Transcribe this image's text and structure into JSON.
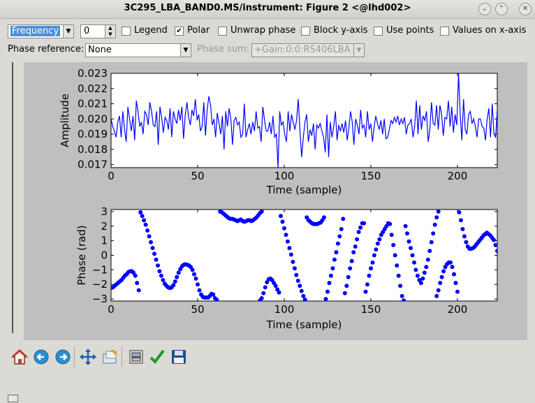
{
  "window": {
    "title": "3C295_LBA_BAND0.MS/instrument: Figure 2 <@lhd002>",
    "buttons": [
      "chevron-down",
      "chevron-up",
      "close"
    ]
  },
  "controls": {
    "axis_select": "Frequency",
    "index_value": "0",
    "checkboxes": [
      {
        "label": "Legend",
        "checked": false
      },
      {
        "label": "Polar",
        "checked": true
      },
      {
        "label": "Unwrap phase",
        "checked": false
      },
      {
        "label": "Block y-axis",
        "checked": false
      },
      {
        "label": "Use points",
        "checked": false
      },
      {
        "label": "Values on x-axis",
        "checked": false
      }
    ],
    "phase_reference_label": "Phase reference:",
    "phase_reference_value": "None",
    "phase_sum_label": "Phase sum:",
    "phase_sum_value": "+Gain:0:0:RS406LBA"
  },
  "chart_data": [
    {
      "type": "line",
      "xlabel": "Time (sample)",
      "ylabel": "Amplitude",
      "xlim": [
        0,
        223
      ],
      "ylim": [
        0.0168,
        0.023
      ],
      "xticks": [
        0,
        50,
        100,
        150,
        200
      ],
      "yticks": [
        "0.017",
        "0.018",
        "0.019",
        "0.020",
        "0.021",
        "0.022",
        "0.023"
      ],
      "ytick_values": [
        0.017,
        0.018,
        0.019,
        0.02,
        0.021,
        0.022,
        0.023
      ],
      "color": "#0000ff",
      "y": [
        0.02,
        0.0195,
        0.0192,
        0.0188,
        0.0198,
        0.0202,
        0.0188,
        0.0205,
        0.0193,
        0.0185,
        0.0208,
        0.02,
        0.0192,
        0.0202,
        0.0186,
        0.0212,
        0.0205,
        0.0195,
        0.0198,
        0.019,
        0.0205,
        0.0203,
        0.0196,
        0.0211,
        0.0205,
        0.0196,
        0.0195,
        0.0205,
        0.0183,
        0.0208,
        0.0201,
        0.0191,
        0.0201,
        0.0199,
        0.0193,
        0.0207,
        0.0188,
        0.0205,
        0.02,
        0.0197,
        0.0206,
        0.0199,
        0.0208,
        0.0187,
        0.0203,
        0.0211,
        0.0201,
        0.0196,
        0.0206,
        0.0202,
        0.0213,
        0.0199,
        0.0203,
        0.0192,
        0.0195,
        0.0211,
        0.0189,
        0.0206,
        0.0215,
        0.0209,
        0.0196,
        0.02,
        0.0188,
        0.0204,
        0.0197,
        0.019,
        0.0202,
        0.018,
        0.0205,
        0.0195,
        0.0207,
        0.02,
        0.0183,
        0.0199,
        0.0201,
        0.0196,
        0.0198,
        0.0188,
        0.019,
        0.021,
        0.0188,
        0.0193,
        0.0197,
        0.019,
        0.0198,
        0.0192,
        0.0205,
        0.0194,
        0.0195,
        0.0185,
        0.0208,
        0.0199,
        0.0192,
        0.0192,
        0.0198,
        0.019,
        0.0202,
        0.0188,
        0.019,
        0.0168,
        0.0205,
        0.0196,
        0.0198,
        0.019,
        0.0185,
        0.0205,
        0.0192,
        0.0203,
        0.0198,
        0.0193,
        0.0199,
        0.0213,
        0.0192,
        0.0175,
        0.0188,
        0.0198,
        0.0203,
        0.0185,
        0.0193,
        0.0189,
        0.0197,
        0.018,
        0.0196,
        0.0194,
        0.0197,
        0.0192,
        0.0188,
        0.0178,
        0.0203,
        0.0175,
        0.0198,
        0.0188,
        0.0195,
        0.0205,
        0.0186,
        0.0196,
        0.0192,
        0.0197,
        0.0191,
        0.0199,
        0.0186,
        0.0194,
        0.0205,
        0.0198,
        0.0183,
        0.02,
        0.0196,
        0.019,
        0.0206,
        0.0194,
        0.0196,
        0.0188,
        0.0205,
        0.0193,
        0.0197,
        0.0185,
        0.0195,
        0.0202,
        0.0197,
        0.0193,
        0.0199,
        0.019,
        0.02,
        0.0187,
        0.0188,
        0.0193,
        0.0199,
        0.0197,
        0.0201,
        0.0198,
        0.0202,
        0.0196,
        0.02,
        0.0197,
        0.0201,
        0.019,
        0.0196,
        0.0197,
        0.02,
        0.0188,
        0.0195,
        0.0212,
        0.019,
        0.0209,
        0.0193,
        0.0202,
        0.0199,
        0.0205,
        0.0185,
        0.0193,
        0.0211,
        0.0197,
        0.0196,
        0.0209,
        0.0193,
        0.0209,
        0.0203,
        0.0189,
        0.0201,
        0.02,
        0.0212,
        0.0195,
        0.0208,
        0.0191,
        0.0203,
        0.0196,
        0.023,
        0.0203,
        0.0186,
        0.0213,
        0.0193,
        0.019,
        0.0203,
        0.0205,
        0.0197,
        0.02,
        0.0195,
        0.0188,
        0.02,
        0.02,
        0.0195,
        0.0194,
        0.0186,
        0.02,
        0.0207,
        0.0188,
        0.021,
        0.019,
        0.0188,
        0.0206
      ]
    },
    {
      "type": "scatter",
      "xlabel": "Time (sample)",
      "ylabel": "Phase (rad)",
      "xlim": [
        0,
        223
      ],
      "ylim": [
        -3.14,
        3.14
      ],
      "xticks": [
        0,
        50,
        100,
        150,
        200
      ],
      "yticks": [
        "3",
        "2",
        "1",
        "0",
        "−1",
        "−2",
        "−3"
      ],
      "ytick_values": [
        3,
        2,
        1,
        0,
        -1,
        -2,
        -3
      ],
      "color": "#0000ff",
      "points": [
        [
          0,
          -2.25
        ],
        [
          1,
          -2.2
        ],
        [
          2,
          -2.1
        ],
        [
          3,
          -2.0
        ],
        [
          4,
          -1.9
        ],
        [
          5,
          -1.8
        ],
        [
          6,
          -1.7
        ],
        [
          7,
          -1.55
        ],
        [
          8,
          -1.4
        ],
        [
          9,
          -1.3
        ],
        [
          10,
          -1.15
        ],
        [
          11,
          -1.1
        ],
        [
          12,
          -1.1
        ],
        [
          13,
          -1.2
        ],
        [
          14,
          -1.4
        ],
        [
          15,
          -1.9
        ],
        [
          16,
          -2.4
        ],
        [
          17,
          2.95
        ],
        [
          18,
          2.7
        ],
        [
          19,
          2.4
        ],
        [
          20,
          2.1
        ],
        [
          21,
          1.7
        ],
        [
          22,
          1.3
        ],
        [
          23,
          0.9
        ],
        [
          24,
          0.5
        ],
        [
          25,
          0.1
        ],
        [
          26,
          -0.3
        ],
        [
          27,
          -0.7
        ],
        [
          28,
          -1.1
        ],
        [
          29,
          -1.4
        ],
        [
          30,
          -1.7
        ],
        [
          31,
          -1.95
        ],
        [
          32,
          -2.1
        ],
        [
          33,
          -2.2
        ],
        [
          34,
          -2.25
        ],
        [
          35,
          -2.2
        ],
        [
          36,
          -2.05
        ],
        [
          37,
          -1.8
        ],
        [
          38,
          -1.5
        ],
        [
          39,
          -1.2
        ],
        [
          40,
          -0.95
        ],
        [
          41,
          -0.75
        ],
        [
          42,
          -0.65
        ],
        [
          43,
          -0.62
        ],
        [
          44,
          -0.65
        ],
        [
          45,
          -0.7
        ],
        [
          46,
          -0.8
        ],
        [
          47,
          -1.0
        ],
        [
          48,
          -1.3
        ],
        [
          49,
          -1.6
        ],
        [
          50,
          -2.0
        ],
        [
          51,
          -2.4
        ],
        [
          52,
          -2.7
        ],
        [
          53,
          -2.85
        ],
        [
          54,
          -2.9
        ],
        [
          55,
          -2.9
        ],
        [
          56,
          -2.9
        ],
        [
          57,
          -2.8
        ],
        [
          58,
          -2.65
        ],
        [
          59,
          -2.7
        ],
        [
          60,
          -2.95
        ],
        [
          61,
          -3.05
        ],
        [
          63,
          3.0
        ],
        [
          64,
          2.95
        ],
        [
          65,
          2.85
        ],
        [
          66,
          2.75
        ],
        [
          67,
          2.65
        ],
        [
          68,
          2.55
        ],
        [
          69,
          2.5
        ],
        [
          70,
          2.5
        ],
        [
          71,
          2.45
        ],
        [
          72,
          2.4
        ],
        [
          73,
          2.35
        ],
        [
          74,
          2.4
        ],
        [
          75,
          2.45
        ],
        [
          76,
          2.35
        ],
        [
          77,
          2.3
        ],
        [
          78,
          2.35
        ],
        [
          79,
          2.4
        ],
        [
          80,
          2.4
        ],
        [
          81,
          2.35
        ],
        [
          82,
          2.4
        ],
        [
          83,
          2.5
        ],
        [
          84,
          2.6
        ],
        [
          85,
          2.75
        ],
        [
          86,
          2.9
        ],
        [
          87,
          3.0
        ],
        [
          86,
          -3.1
        ],
        [
          87,
          -2.95
        ],
        [
          88,
          -2.6
        ],
        [
          89,
          -2.2
        ],
        [
          90,
          -1.85
        ],
        [
          91,
          -1.65
        ],
        [
          92,
          -1.6
        ],
        [
          93,
          -1.7
        ],
        [
          94,
          -1.9
        ],
        [
          95,
          -2.1
        ],
        [
          96,
          -2.35
        ],
        [
          97,
          -2.55
        ],
        [
          98,
          2.7
        ],
        [
          99,
          2.3
        ],
        [
          100,
          1.85
        ],
        [
          101,
          1.4
        ],
        [
          102,
          0.95
        ],
        [
          103,
          0.5
        ],
        [
          104,
          0.05
        ],
        [
          105,
          -0.45
        ],
        [
          106,
          -0.9
        ],
        [
          107,
          -1.35
        ],
        [
          108,
          -1.75
        ],
        [
          109,
          -2.1
        ],
        [
          110,
          -2.45
        ],
        [
          111,
          -2.8
        ],
        [
          112,
          -3.05
        ],
        [
          113,
          2.6
        ],
        [
          114,
          2.4
        ],
        [
          115,
          2.3
        ],
        [
          116,
          2.2
        ],
        [
          117,
          2.15
        ],
        [
          118,
          2.15
        ],
        [
          119,
          2.15
        ],
        [
          120,
          2.2
        ],
        [
          121,
          2.25
        ],
        [
          122,
          2.4
        ],
        [
          123,
          2.6
        ],
        [
          124,
          -3.0
        ],
        [
          125,
          -2.5
        ],
        [
          126,
          -1.9
        ],
        [
          127,
          -1.4
        ],
        [
          128,
          -0.9
        ],
        [
          129,
          -0.3
        ],
        [
          130,
          0.2
        ],
        [
          131,
          0.8
        ],
        [
          132,
          1.3
        ],
        [
          133,
          1.8
        ],
        [
          134,
          2.5
        ],
        [
          135,
          -2.6
        ],
        [
          136,
          -2.1
        ],
        [
          137,
          -1.5
        ],
        [
          138,
          -0.9
        ],
        [
          139,
          -0.4
        ],
        [
          140,
          0.2
        ],
        [
          141,
          0.6
        ],
        [
          142,
          1.1
        ],
        [
          143,
          1.6
        ],
        [
          144,
          1.9
        ],
        [
          145,
          2.2
        ],
        [
          146,
          2.2
        ],
        [
          147,
          -2.5
        ],
        [
          148,
          -2.0
        ],
        [
          149,
          -1.4
        ],
        [
          150,
          -0.9
        ],
        [
          151,
          -0.5
        ],
        [
          152,
          0.0
        ],
        [
          153,
          0.4
        ],
        [
          154,
          0.8
        ],
        [
          155,
          1.1
        ],
        [
          156,
          1.4
        ],
        [
          157,
          1.6
        ],
        [
          158,
          1.8
        ],
        [
          159,
          2.0
        ],
        [
          160,
          2.2
        ],
        [
          161,
          2.15
        ],
        [
          162,
          1.4
        ],
        [
          163,
          0.7
        ],
        [
          164,
          0.0
        ],
        [
          165,
          -0.7
        ],
        [
          166,
          -1.4
        ],
        [
          167,
          -2.1
        ],
        [
          168,
          -2.8
        ],
        [
          169,
          -3.1
        ],
        [
          170,
          2.0
        ],
        [
          171,
          1.5
        ],
        [
          172,
          0.95
        ],
        [
          173,
          0.5
        ],
        [
          174,
          0.0
        ],
        [
          175,
          -0.5
        ],
        [
          176,
          -1.0
        ],
        [
          177,
          -1.4
        ],
        [
          178,
          -1.7
        ],
        [
          179,
          -1.9
        ],
        [
          180,
          -1.6
        ],
        [
          181,
          -1.2
        ],
        [
          182,
          -0.8
        ],
        [
          183,
          -0.3
        ],
        [
          184,
          0.3
        ],
        [
          185,
          0.9
        ],
        [
          186,
          1.5
        ],
        [
          187,
          2.1
        ],
        [
          188,
          2.6
        ],
        [
          189,
          3.0
        ],
        [
          188,
          -2.8
        ],
        [
          189,
          -2.4
        ],
        [
          190,
          -1.9
        ],
        [
          191,
          -1.5
        ],
        [
          192,
          -1.1
        ],
        [
          193,
          -0.8
        ],
        [
          194,
          -0.6
        ],
        [
          195,
          -0.5
        ],
        [
          196,
          -0.5
        ],
        [
          197,
          -0.8
        ],
        [
          198,
          -1.3
        ],
        [
          199,
          -1.9
        ],
        [
          200,
          -2.5
        ],
        [
          201,
          2.95
        ],
        [
          202,
          2.4
        ],
        [
          203,
          1.8
        ],
        [
          204,
          1.3
        ],
        [
          205,
          0.9
        ],
        [
          206,
          0.6
        ],
        [
          207,
          0.45
        ],
        [
          208,
          0.45
        ],
        [
          209,
          0.5
        ],
        [
          210,
          0.6
        ],
        [
          211,
          0.75
        ],
        [
          212,
          0.9
        ],
        [
          213,
          1.05
        ],
        [
          214,
          1.2
        ],
        [
          215,
          1.35
        ],
        [
          216,
          1.45
        ],
        [
          217,
          1.55
        ],
        [
          218,
          1.45
        ],
        [
          219,
          1.35
        ],
        [
          220,
          1.2
        ],
        [
          221,
          1.05
        ],
        [
          222,
          0.7
        ],
        [
          223,
          0.3
        ]
      ]
    }
  ],
  "toolbar": {
    "buttons": [
      "home-icon",
      "back-arrow-icon",
      "forward-arrow-icon",
      "pan-move-icon",
      "zoom-rect-icon",
      "subplot-config-icon",
      "check-icon",
      "save-floppy-icon"
    ]
  }
}
